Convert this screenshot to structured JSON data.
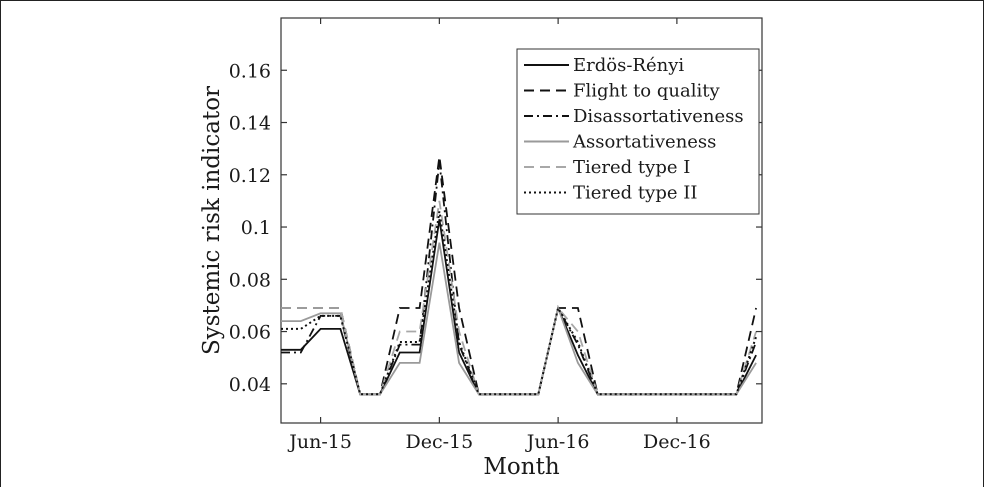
{
  "chart_data": {
    "type": "line",
    "xlabel": "Month",
    "ylabel": "Systemic risk indicator",
    "ylim": [
      0.025,
      0.18
    ],
    "xlim": [
      0,
      24.3
    ],
    "x_ticks": [
      {
        "label": "Jun-15",
        "x": 2
      },
      {
        "label": "Dec-15",
        "x": 8
      },
      {
        "label": "Jun-16",
        "x": 14
      },
      {
        "label": "Dec-16",
        "x": 20
      }
    ],
    "y_ticks": [
      {
        "label": "0.04",
        "value": 0.04
      },
      {
        "label": "0.06",
        "value": 0.06
      },
      {
        "label": "0.08",
        "value": 0.08
      },
      {
        "label": "0.1",
        "value": 0.1
      },
      {
        "label": "0.12",
        "value": 0.12
      },
      {
        "label": "0.14",
        "value": 0.14
      },
      {
        "label": "0.16",
        "value": 0.16
      }
    ],
    "legend_position": "top-right",
    "x": [
      0,
      1,
      2,
      3,
      4,
      5,
      6,
      7,
      8,
      9,
      10,
      11,
      12,
      13,
      14,
      15,
      16,
      17,
      18,
      19,
      20,
      21,
      22,
      23,
      24
    ],
    "series": [
      {
        "name": "Erdös-Rényi",
        "style": "solid",
        "color": "#111111",
        "values": [
          0.053,
          0.053,
          0.061,
          0.061,
          0.036,
          0.036,
          0.052,
          0.052,
          0.103,
          0.052,
          0.036,
          0.036,
          0.036,
          0.036,
          0.069,
          0.051,
          0.036,
          0.036,
          0.036,
          0.036,
          0.036,
          0.036,
          0.036,
          0.036,
          0.051
        ]
      },
      {
        "name": "Flight to quality",
        "style": "dashed",
        "color": "#111111",
        "values": [
          0.069,
          0.069,
          0.069,
          0.069,
          0.036,
          0.036,
          0.069,
          0.069,
          0.127,
          0.069,
          0.036,
          0.036,
          0.036,
          0.036,
          0.069,
          0.069,
          0.036,
          0.036,
          0.036,
          0.036,
          0.036,
          0.036,
          0.036,
          0.036,
          0.069
        ]
      },
      {
        "name": "Disassortativeness",
        "style": "dashdot",
        "color": "#111111",
        "values": [
          0.052,
          0.052,
          0.066,
          0.066,
          0.036,
          0.036,
          0.055,
          0.055,
          0.125,
          0.055,
          0.036,
          0.036,
          0.036,
          0.036,
          0.069,
          0.055,
          0.036,
          0.036,
          0.036,
          0.036,
          0.036,
          0.036,
          0.036,
          0.036,
          0.056
        ]
      },
      {
        "name": "Assortativeness",
        "style": "solid",
        "color": "#9a9a9a",
        "values": [
          0.064,
          0.064,
          0.067,
          0.067,
          0.036,
          0.036,
          0.048,
          0.048,
          0.094,
          0.048,
          0.036,
          0.036,
          0.036,
          0.036,
          0.069,
          0.048,
          0.036,
          0.036,
          0.036,
          0.036,
          0.036,
          0.036,
          0.036,
          0.036,
          0.048
        ]
      },
      {
        "name": "Tiered type I",
        "style": "dashed",
        "color": "#a8a8a8",
        "values": [
          0.069,
          0.069,
          0.069,
          0.069,
          0.036,
          0.036,
          0.06,
          0.06,
          0.11,
          0.06,
          0.036,
          0.036,
          0.036,
          0.036,
          0.069,
          0.06,
          0.036,
          0.036,
          0.036,
          0.036,
          0.036,
          0.036,
          0.036,
          0.036,
          0.06
        ]
      },
      {
        "name": "Tiered type II",
        "style": "dotted",
        "color": "#111111",
        "values": [
          0.061,
          0.061,
          0.066,
          0.066,
          0.036,
          0.036,
          0.056,
          0.056,
          0.106,
          0.056,
          0.036,
          0.036,
          0.036,
          0.036,
          0.069,
          0.056,
          0.036,
          0.036,
          0.036,
          0.036,
          0.036,
          0.036,
          0.036,
          0.036,
          0.058
        ]
      }
    ]
  }
}
